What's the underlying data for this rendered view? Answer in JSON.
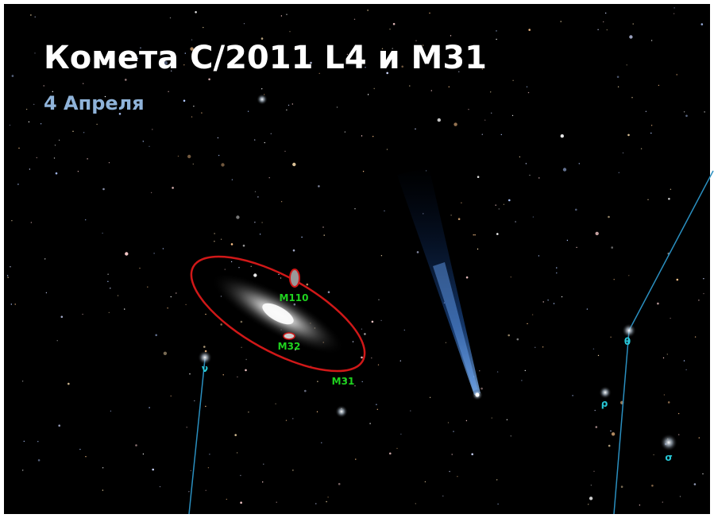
{
  "header": {
    "title": "Комета C/2011 L4 и M31",
    "subtitle": "4 Апреля"
  },
  "objects": [
    {
      "label": "M110"
    },
    {
      "label": "M32"
    },
    {
      "label": "M31"
    }
  ],
  "stars": [
    {
      "label": "ν"
    },
    {
      "label": "θ"
    },
    {
      "label": "ρ"
    },
    {
      "label": "σ"
    }
  ]
}
